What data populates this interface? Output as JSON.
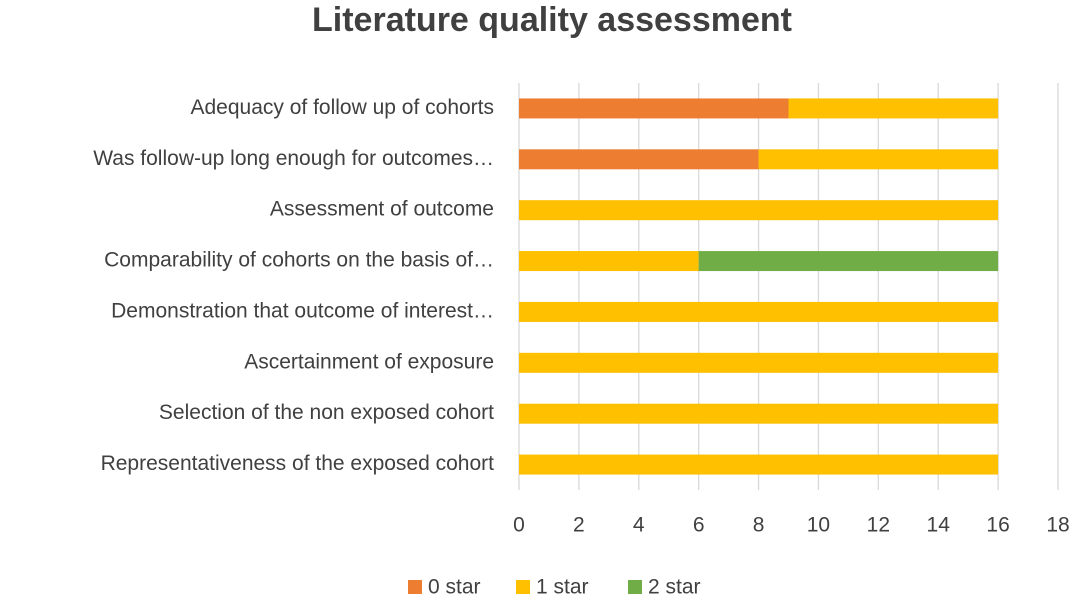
{
  "chart_data": {
    "type": "stacked-bar-horizontal",
    "title": "Literature quality assessment",
    "categories": [
      "Adequacy of follow up of cohorts",
      "Was follow-up long enough for outcomes…",
      "Assessment of outcome",
      "Comparability of cohorts on the basis of…",
      "Demonstration that outcome of interest…",
      "Ascertainment of exposure",
      "Selection of the non exposed cohort",
      "Representativeness of the exposed cohort"
    ],
    "series": [
      {
        "name": "0 star",
        "color": "#ED7D31",
        "values": [
          9,
          8,
          0,
          0,
          0,
          0,
          0,
          0
        ]
      },
      {
        "name": "1 star",
        "color": "#FFC000",
        "values": [
          7,
          8,
          16,
          6,
          16,
          16,
          16,
          16
        ]
      },
      {
        "name": "2 star",
        "color": "#70AD47",
        "values": [
          0,
          0,
          0,
          10,
          0,
          0,
          0,
          0
        ]
      }
    ],
    "xlim": [
      0,
      18
    ],
    "xticks": [
      0,
      2,
      4,
      6,
      8,
      10,
      12,
      14,
      16,
      18
    ],
    "grid": true,
    "legend": "bottom"
  }
}
